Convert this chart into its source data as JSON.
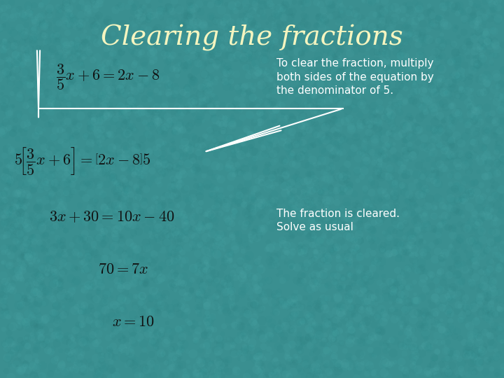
{
  "title": "Clearing the fractions",
  "title_color": "#F5F5C0",
  "title_fontsize": 28,
  "bg_color": "#3A8F90",
  "eq1": "$\\dfrac{3}{5}x + 6 = 2x - 8$",
  "eq2": "$5\\!\\left[\\dfrac{3}{5}x + 6\\right] = \\left[2x - 8\\right]5$",
  "eq3": "$3x + 30 = 10x - 40$",
  "eq4": "$70 = 7x$",
  "eq5": "$x = 10$",
  "note1": "To clear the fraction, multiply\nboth sides of the equation by\nthe denominator of 5.",
  "note2": "The fraction is cleared.\nSolve as usual",
  "eq_color": "#111111",
  "note_color": "#FFFFFF",
  "arrow_color": "#FFFFFF",
  "title_font": "Comic Sans MS",
  "eq_fontsize": 16,
  "note_fontsize": 11
}
